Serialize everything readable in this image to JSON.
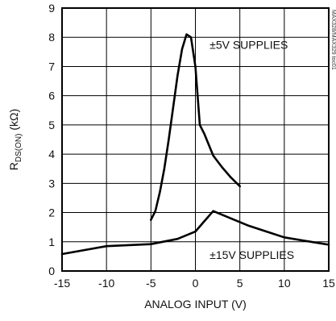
{
  "chart_data": {
    "type": "line",
    "title": "",
    "xlabel": "ANALOG INPUT (V)",
    "ylabel_main": "R",
    "ylabel_sub": "DS(ON)",
    "ylabel_unit": " (kΩ)",
    "xlim": [
      -15,
      15
    ],
    "ylim": [
      0,
      9
    ],
    "xticks": [
      "-15",
      "-10",
      "-5",
      "0",
      "5",
      "10",
      "15"
    ],
    "yticks": [
      "0",
      "1",
      "2",
      "3",
      "4",
      "5",
      "6",
      "7",
      "8",
      "9"
    ],
    "grid": true,
    "line_color": "#000000",
    "series": [
      {
        "name": "±5V SUPPLIES",
        "x": [
          -5,
          -4.5,
          -4,
          -3.5,
          -3,
          -2.5,
          -2,
          -1.5,
          -1,
          -0.5,
          0,
          0.5,
          1,
          2,
          3,
          4,
          5
        ],
        "y": [
          1.75,
          2.05,
          2.7,
          3.5,
          4.5,
          5.6,
          6.7,
          7.6,
          8.1,
          8.0,
          7.0,
          5.0,
          4.7,
          3.95,
          3.55,
          3.2,
          2.9
        ]
      },
      {
        "name": "±15V SUPPLIES",
        "x": [
          -15,
          -10,
          -5,
          -2,
          0,
          1,
          2,
          4,
          6,
          8,
          10,
          13,
          15
        ],
        "y": [
          0.58,
          0.85,
          0.92,
          1.1,
          1.35,
          1.7,
          2.05,
          1.8,
          1.55,
          1.35,
          1.15,
          1.0,
          0.9
        ]
      }
    ],
    "annotations": [
      {
        "text": "±5V SUPPLIES",
        "x": 1.6,
        "y": 7.6
      },
      {
        "text": "±15V SUPPLIES",
        "x": 1.6,
        "y": 0.42
      }
    ],
    "side_code": "MAX328/MAX329 toc01"
  }
}
